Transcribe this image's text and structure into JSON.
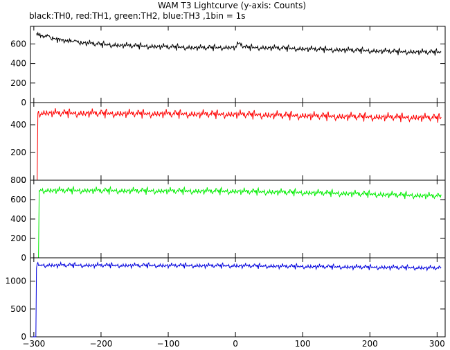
{
  "title": "WAM T3 Lightcurve (y-axis: Counts)",
  "subtitle": "black:TH0, red:TH1, green:TH2, blue:TH3 ,1bin = 1s",
  "chart_data": {
    "type": "line",
    "title": "WAM T3 Lightcurve (y-axis: Counts)",
    "subtitle": "black:TH0, red:TH1, green:TH2, blue:TH3 ,1bin = 1s",
    "xlim": [
      -305,
      312
    ],
    "x_ticks": [
      -300,
      -200,
      -100,
      0,
      100,
      200,
      300
    ],
    "grid": false,
    "panels": [
      {
        "series": "TH0",
        "color": "#000000",
        "ylim": [
          0,
          780
        ],
        "y_ticks": [
          0,
          200,
          400,
          600
        ],
        "start": -296,
        "end": 306,
        "levels": [
          [
            -296,
            690
          ],
          [
            -280,
            665
          ],
          [
            -260,
            635
          ],
          [
            -240,
            615
          ],
          [
            -200,
            590
          ],
          [
            -150,
            575
          ],
          [
            -100,
            565
          ],
          [
            -50,
            555
          ],
          [
            0,
            560
          ],
          [
            5,
            600
          ],
          [
            15,
            560
          ],
          [
            50,
            555
          ],
          [
            100,
            545
          ],
          [
            150,
            535
          ],
          [
            200,
            525
          ],
          [
            250,
            515
          ],
          [
            306,
            510
          ]
        ],
        "noise": 22
      },
      {
        "series": "TH1",
        "color": "#ff0000",
        "ylim": [
          0,
          560
        ],
        "y_ticks": [
          0,
          200,
          400
        ],
        "start": -300,
        "end": 306,
        "rise_x": -295,
        "levels": [
          [
            -294,
            480
          ],
          [
            0,
            470
          ],
          [
            150,
            455
          ],
          [
            306,
            445
          ]
        ],
        "noise": 22
      },
      {
        "series": "TH2",
        "color": "#00ee00",
        "ylim": [
          0,
          800
        ],
        "y_ticks": [
          0,
          200,
          400,
          600,
          800
        ],
        "start": -300,
        "end": 306,
        "rise_x": -293,
        "levels": [
          [
            -292,
            690
          ],
          [
            0,
            680
          ],
          [
            150,
            660
          ],
          [
            306,
            630
          ]
        ],
        "noise": 25
      },
      {
        "series": "TH3",
        "color": "#0000dd",
        "ylim": [
          0,
          1420
        ],
        "y_ticks": [
          0,
          500,
          1000
        ],
        "start": -302,
        "end": 306,
        "rise_x": -297,
        "levels": [
          [
            -296,
            1280
          ],
          [
            0,
            1270
          ],
          [
            150,
            1250
          ],
          [
            306,
            1230
          ]
        ],
        "noise": 32
      }
    ]
  }
}
